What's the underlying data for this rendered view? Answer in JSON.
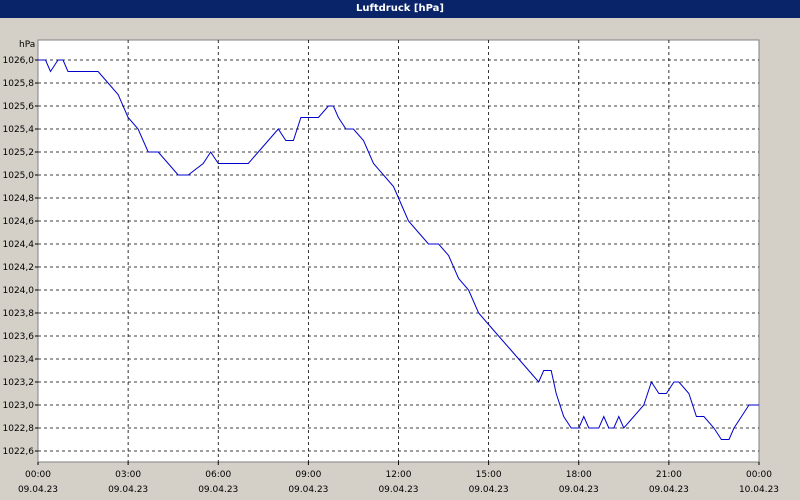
{
  "window": {
    "title": "Luftdruck [hPa]"
  },
  "colors": {
    "titlebar": "#0a246a",
    "background": "#d4d0c8",
    "plot_area": "#ffffff",
    "grid": "#000000",
    "line": "#0000cc"
  },
  "chart_data": {
    "type": "line",
    "title": "Luftdruck [hPa]",
    "ylabel": "hPa",
    "xlabel": "",
    "ylim": [
      1022.55,
      1026.15
    ],
    "y_ticks": [
      "1026,0",
      "1025,8",
      "1025,6",
      "1025,4",
      "1025,2",
      "1025,0",
      "1024,8",
      "1024,6",
      "1024,4",
      "1024,2",
      "1024,0",
      "1023,8",
      "1023,6",
      "1023,4",
      "1023,2",
      "1023,0",
      "1022,8",
      "1022,6"
    ],
    "x_ticks": [
      {
        "time": "00:00",
        "date": "09.04.23"
      },
      {
        "time": "03:00",
        "date": "09.04.23"
      },
      {
        "time": "06:00",
        "date": "09.04.23"
      },
      {
        "time": "09:00",
        "date": "09.04.23"
      },
      {
        "time": "12:00",
        "date": "09.04.23"
      },
      {
        "time": "15:00",
        "date": "09.04.23"
      },
      {
        "time": "18:00",
        "date": "09.04.23"
      },
      {
        "time": "21:00",
        "date": "09.04.23"
      },
      {
        "time": "00:00",
        "date": "10.04.23"
      }
    ],
    "grid": true,
    "series": [
      {
        "x": [
          "09.04.23 00:00",
          "09.04.23 00:15",
          "09.04.23 00:25",
          "09.04.23 00:40",
          "09.04.23 00:50",
          "09.04.23 01:00",
          "09.04.23 01:30",
          "09.04.23 02:00",
          "09.04.23 02:20",
          "09.04.23 02:40",
          "09.04.23 03:00",
          "09.04.23 03:20",
          "09.04.23 03:40",
          "09.04.23 04:00",
          "09.04.23 04:20",
          "09.04.23 04:40",
          "09.04.23 05:00",
          "09.04.23 05:30",
          "09.04.23 05:45",
          "09.04.23 06:00",
          "09.04.23 06:20",
          "09.04.23 06:40",
          "09.04.23 07:00",
          "09.04.23 07:20",
          "09.04.23 07:40",
          "09.04.23 08:00",
          "09.04.23 08:15",
          "09.04.23 08:30",
          "09.04.23 08:45",
          "09.04.23 09:00",
          "09.04.23 09:20",
          "09.04.23 09:40",
          "09.04.23 09:50",
          "09.04.23 10:00",
          "09.04.23 10:15",
          "09.04.23 10:30",
          "09.04.23 10:50",
          "09.04.23 11:10",
          "09.04.23 11:30",
          "09.04.23 11:50",
          "09.04.23 12:00",
          "09.04.23 12:20",
          "09.04.23 12:40",
          "09.04.23 13:00",
          "09.04.23 13:20",
          "09.04.23 13:40",
          "09.04.23 14:00",
          "09.04.23 14:20",
          "09.04.23 14:40",
          "09.04.23 15:00",
          "09.04.23 15:20",
          "09.04.23 15:40",
          "09.04.23 16:00",
          "09.04.23 16:20",
          "09.04.23 16:40",
          "09.04.23 16:50",
          "09.04.23 17:05",
          "09.04.23 17:15",
          "09.04.23 17:30",
          "09.04.23 17:45",
          "09.04.23 18:00",
          "09.04.23 18:10",
          "09.04.23 18:20",
          "09.04.23 18:40",
          "09.04.23 18:50",
          "09.04.23 19:00",
          "09.04.23 19:10",
          "09.04.23 19:20",
          "09.04.23 19:30",
          "09.04.23 19:50",
          "09.04.23 20:10",
          "09.04.23 20:25",
          "09.04.23 20:40",
          "09.04.23 20:55",
          "09.04.23 21:10",
          "09.04.23 21:20",
          "09.04.23 21:40",
          "09.04.23 21:55",
          "09.04.23 22:10",
          "09.04.23 22:30",
          "09.04.23 22:45",
          "09.04.23 23:00",
          "09.04.23 23:10",
          "09.04.23 23:25",
          "09.04.23 23:40",
          "10.04.23 00:00"
        ],
        "y": [
          1026.0,
          1026.0,
          1025.9,
          1026.0,
          1026.0,
          1025.9,
          1025.9,
          1025.9,
          1025.8,
          1025.7,
          1025.5,
          1025.4,
          1025.2,
          1025.2,
          1025.1,
          1025.0,
          1025.0,
          1025.1,
          1025.2,
          1025.1,
          1025.1,
          1025.1,
          1025.1,
          1025.2,
          1025.3,
          1025.4,
          1025.3,
          1025.3,
          1025.5,
          1025.5,
          1025.5,
          1025.6,
          1025.6,
          1025.5,
          1025.4,
          1025.4,
          1025.3,
          1025.1,
          1025.0,
          1024.9,
          1024.8,
          1024.6,
          1024.5,
          1024.4,
          1024.4,
          1024.3,
          1024.1,
          1024.0,
          1023.8,
          1023.7,
          1023.6,
          1023.5,
          1023.4,
          1023.3,
          1023.2,
          1023.3,
          1023.3,
          1023.1,
          1022.9,
          1022.8,
          1022.8,
          1022.9,
          1022.8,
          1022.8,
          1022.9,
          1022.8,
          1022.8,
          1022.9,
          1022.8,
          1022.9,
          1023.0,
          1023.2,
          1023.1,
          1023.1,
          1023.2,
          1023.2,
          1023.1,
          1022.9,
          1022.9,
          1022.8,
          1022.7,
          1022.7,
          1022.8,
          1022.9,
          1023.0,
          1023.0
        ]
      }
    ]
  }
}
